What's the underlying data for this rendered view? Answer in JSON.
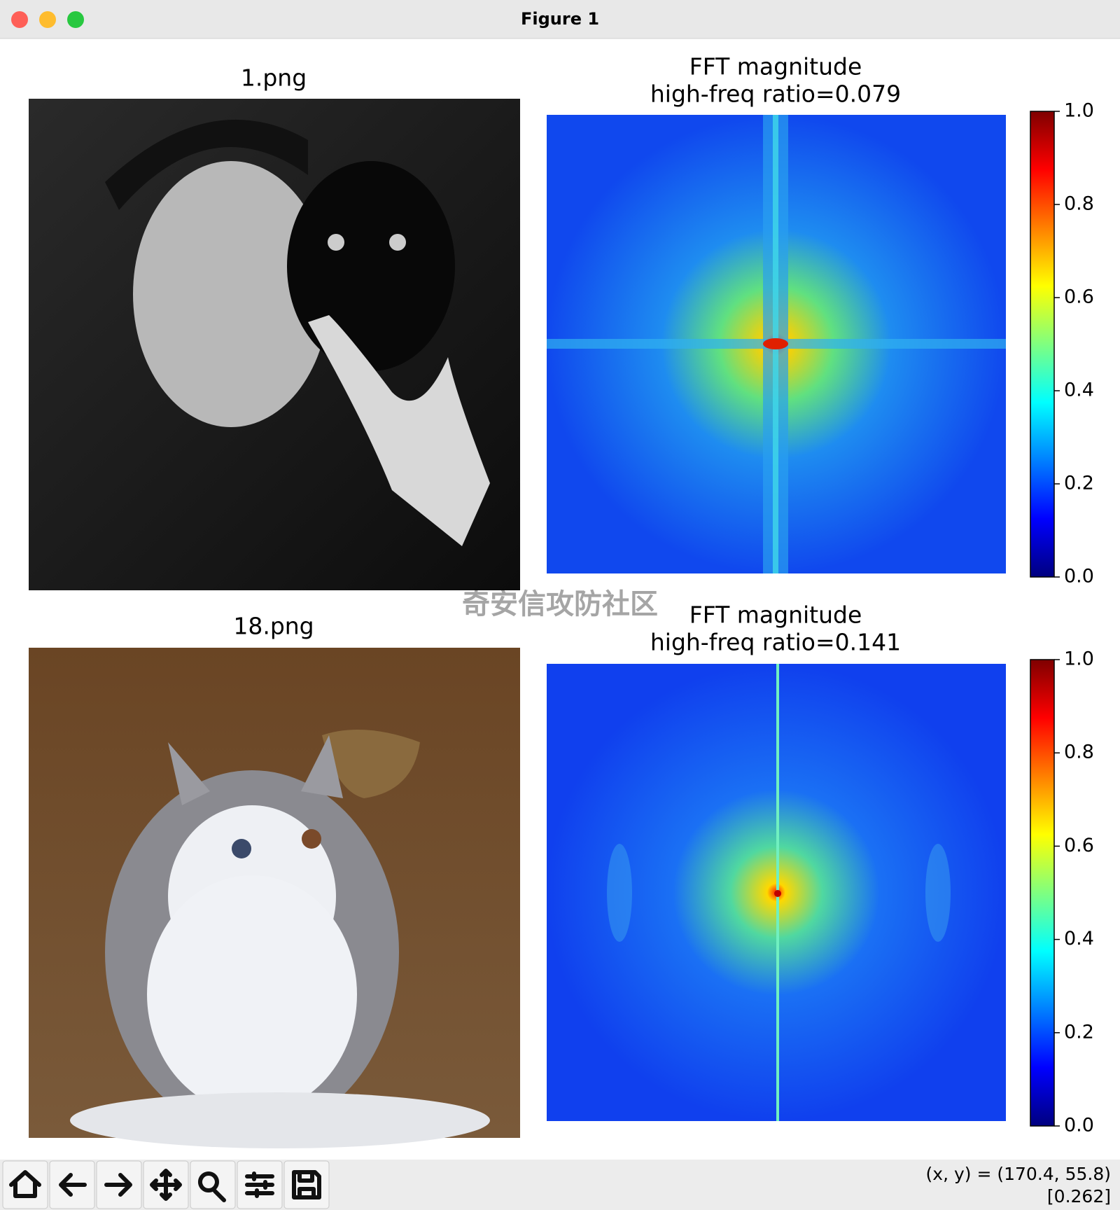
{
  "window": {
    "title": "Figure 1"
  },
  "panels": [
    {
      "title": "1.png"
    },
    {
      "title_lines": [
        "FFT magnitude",
        "high-freq ratio=0.079"
      ],
      "colorbar": {
        "lim": [
          0,
          1
        ],
        "ticks": [
          {
            "value": 0,
            "label": "0.0"
          },
          {
            "value": 0.2,
            "label": "0.2"
          },
          {
            "value": 0.4,
            "label": "0.4"
          },
          {
            "value": 0.6,
            "label": "0.6"
          },
          {
            "value": 0.8,
            "label": "0.8"
          },
          {
            "value": 1,
            "label": "1.0"
          }
        ]
      }
    },
    {
      "title": "18.png"
    },
    {
      "title_lines": [
        "FFT magnitude",
        "high-freq ratio=0.141"
      ],
      "colorbar": {
        "lim": [
          0,
          1
        ],
        "ticks": [
          {
            "value": 0,
            "label": "0.0"
          },
          {
            "value": 0.2,
            "label": "0.2"
          },
          {
            "value": 0.4,
            "label": "0.4"
          },
          {
            "value": 0.6,
            "label": "0.6"
          },
          {
            "value": 0.8,
            "label": "0.8"
          },
          {
            "value": 1,
            "label": "1.0"
          }
        ]
      }
    }
  ],
  "watermark": "奇安信攻防社区",
  "status": {
    "coords": "(x, y) = (170.4, 55.8)",
    "value": "[0.262]"
  }
}
